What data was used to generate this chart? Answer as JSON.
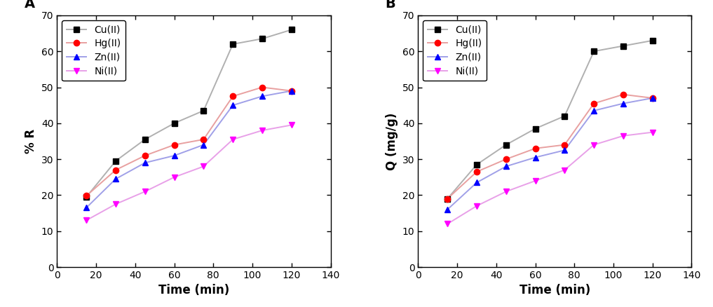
{
  "time": [
    15,
    30,
    45,
    60,
    75,
    90,
    105,
    120
  ],
  "panel_A": {
    "title": "A",
    "ylabel": "% R",
    "Cu": [
      19.5,
      29.5,
      35.5,
      40.0,
      43.5,
      62.0,
      63.5,
      66.0
    ],
    "Hg": [
      19.8,
      27.0,
      31.0,
      34.0,
      35.5,
      47.5,
      50.0,
      49.0
    ],
    "Zn": [
      16.5,
      24.5,
      29.0,
      31.0,
      34.0,
      45.0,
      47.5,
      49.0
    ],
    "Ni": [
      13.0,
      17.5,
      21.0,
      25.0,
      28.0,
      35.5,
      38.0,
      39.5
    ]
  },
  "panel_B": {
    "title": "B",
    "ylabel": "Q (mg/g)",
    "Cu": [
      19.0,
      28.5,
      34.0,
      38.5,
      42.0,
      60.0,
      61.5,
      63.0
    ],
    "Hg": [
      19.0,
      26.5,
      30.0,
      33.0,
      34.0,
      45.5,
      48.0,
      47.0
    ],
    "Zn": [
      16.0,
      23.5,
      28.0,
      30.5,
      32.5,
      43.5,
      45.5,
      47.0
    ],
    "Ni": [
      12.0,
      17.0,
      21.0,
      24.0,
      27.0,
      34.0,
      36.5,
      37.5
    ]
  },
  "xlabel": "Time (min)",
  "xlim": [
    0,
    140
  ],
  "ylim": [
    0,
    70
  ],
  "xticks": [
    0,
    20,
    40,
    60,
    80,
    100,
    120,
    140
  ],
  "yticks": [
    0,
    10,
    20,
    30,
    40,
    50,
    60,
    70
  ],
  "marker_colors": {
    "Cu": "#000000",
    "Hg": "#ff0000",
    "Zn": "#0000ff",
    "Ni": "#ff00ff"
  },
  "line_colors": {
    "Cu": "#b0b0b0",
    "Hg": "#e8a0a0",
    "Zn": "#a0a0e8",
    "Ni": "#e8a0e8"
  },
  "markers": {
    "Cu": "s",
    "Hg": "o",
    "Zn": "^",
    "Ni": "v"
  },
  "labels": {
    "Cu": "Cu(II)",
    "Hg": "Hg(II)",
    "Zn": "Zn(II)",
    "Ni": "Ni(II)"
  },
  "markersize": 6,
  "linewidth": 1.4,
  "fontsize_label": 12,
  "fontsize_tick": 10,
  "fontsize_legend": 10,
  "fontsize_panel": 14
}
